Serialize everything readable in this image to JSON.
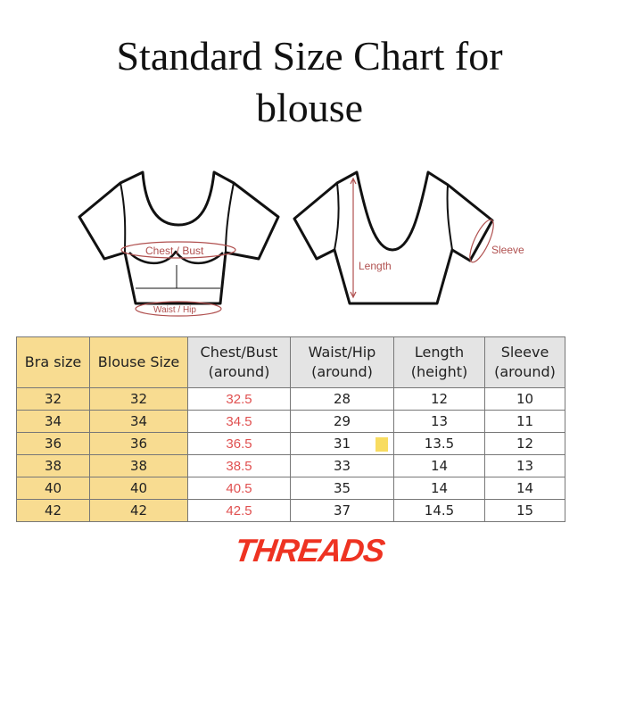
{
  "title_line1": "Standard Size Chart for",
  "title_line2": "blouse",
  "diagram": {
    "chest": "Chest / Bust",
    "waist": "Waist / Hip",
    "length": "Length",
    "sleeve": "Sleeve"
  },
  "table": {
    "headers": [
      [
        "Bra size",
        ""
      ],
      [
        "Blouse Size",
        ""
      ],
      [
        "Chest/Bust",
        "(around)"
      ],
      [
        "Waist/Hip",
        "(around)"
      ],
      [
        "Length",
        "(height)"
      ],
      [
        "Sleeve",
        "(around)"
      ]
    ],
    "rows": [
      [
        "32",
        "32",
        "32.5",
        "28",
        "12",
        "10"
      ],
      [
        "34",
        "34",
        "34.5",
        "29",
        "13",
        "11"
      ],
      [
        "36",
        "36",
        "36.5",
        "31",
        "13.5",
        "12"
      ],
      [
        "38",
        "38",
        "38.5",
        "33",
        "14",
        "13"
      ],
      [
        "40",
        "40",
        "40.5",
        "35",
        "14",
        "14"
      ],
      [
        "42",
        "42",
        "42.5",
        "37",
        "14.5",
        "15"
      ]
    ]
  },
  "brand": "THREADS",
  "colors": {
    "header_yellow": "#f8dc91",
    "chest_red": "#e05050",
    "brand_red": "#ee3322",
    "measure_line": "#b0504f"
  }
}
